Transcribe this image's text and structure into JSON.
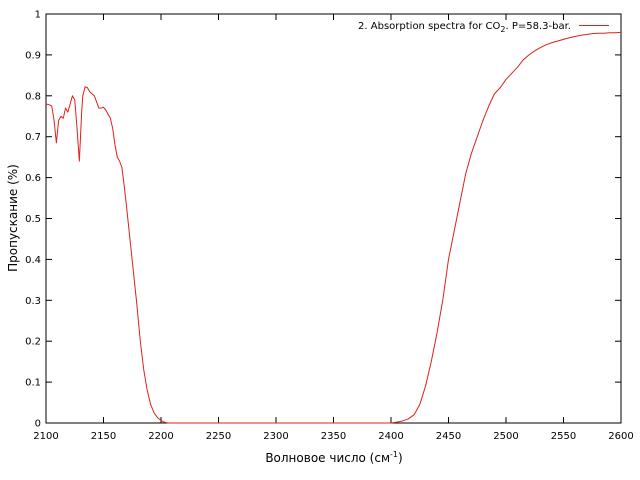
{
  "chart_data": {
    "type": "line",
    "title": "",
    "xlabel": "Волновое число (см",
    "xlabel_sup": "-1",
    "xlabel_suffix": ")",
    "ylabel": "Пропускание (%)",
    "xlim": [
      2100,
      2600
    ],
    "ylim": [
      0,
      1
    ],
    "xticks": [
      2100,
      2150,
      2200,
      2250,
      2300,
      2350,
      2400,
      2450,
      2500,
      2550,
      2600
    ],
    "yticks": [
      0,
      0.1,
      0.2,
      0.3,
      0.4,
      0.5,
      0.6,
      0.7,
      0.8,
      0.9,
      1
    ],
    "grid": false,
    "legend_position": "top-right",
    "legend": {
      "prefix": "2. Absorption spectra for CO",
      "sub": "2",
      "suffix": ". P=58.3-bar."
    },
    "series": [
      {
        "name": "2. Absorption spectra for CO2. P=58.3-bar.",
        "color": "#e0201b",
        "x": [
          2100,
          2103,
          2105,
          2107,
          2109,
          2111,
          2113,
          2115,
          2117,
          2119,
          2121,
          2123,
          2125,
          2127,
          2129,
          2130,
          2131,
          2132,
          2134,
          2136,
          2138,
          2140,
          2142,
          2144,
          2146,
          2148,
          2150,
          2152,
          2154,
          2156,
          2158,
          2160,
          2162,
          2164,
          2166,
          2168,
          2170,
          2173,
          2176,
          2179,
          2182,
          2185,
          2188,
          2191,
          2194,
          2197,
          2200,
          2203,
          2206,
          2209,
          2212,
          2215,
          2218,
          2400,
          2405,
          2410,
          2415,
          2420,
          2425,
          2430,
          2435,
          2440,
          2445,
          2450,
          2455,
          2460,
          2465,
          2470,
          2475,
          2480,
          2485,
          2490,
          2495,
          2500,
          2505,
          2510,
          2515,
          2520,
          2525,
          2530,
          2535,
          2540,
          2545,
          2550,
          2555,
          2560,
          2565,
          2570,
          2575,
          2580,
          2585,
          2590,
          2595,
          2600
        ],
        "y": [
          0.78,
          0.778,
          0.775,
          0.74,
          0.685,
          0.74,
          0.75,
          0.745,
          0.77,
          0.76,
          0.78,
          0.8,
          0.79,
          0.72,
          0.64,
          0.7,
          0.76,
          0.8,
          0.822,
          0.82,
          0.81,
          0.805,
          0.8,
          0.785,
          0.77,
          0.77,
          0.772,
          0.765,
          0.755,
          0.745,
          0.72,
          0.68,
          0.65,
          0.64,
          0.625,
          0.58,
          0.53,
          0.45,
          0.37,
          0.29,
          0.2,
          0.13,
          0.08,
          0.045,
          0.025,
          0.013,
          0.006,
          0.002,
          0,
          0,
          0,
          0,
          0,
          0,
          0.002,
          0.005,
          0.01,
          0.02,
          0.045,
          0.09,
          0.15,
          0.22,
          0.3,
          0.4,
          0.47,
          0.54,
          0.61,
          0.66,
          0.7,
          0.74,
          0.775,
          0.805,
          0.82,
          0.84,
          0.855,
          0.87,
          0.888,
          0.9,
          0.91,
          0.918,
          0.925,
          0.93,
          0.934,
          0.938,
          0.942,
          0.945,
          0.948,
          0.95,
          0.952,
          0.953,
          0.953,
          0.954,
          0.954,
          0.955
        ]
      }
    ]
  }
}
